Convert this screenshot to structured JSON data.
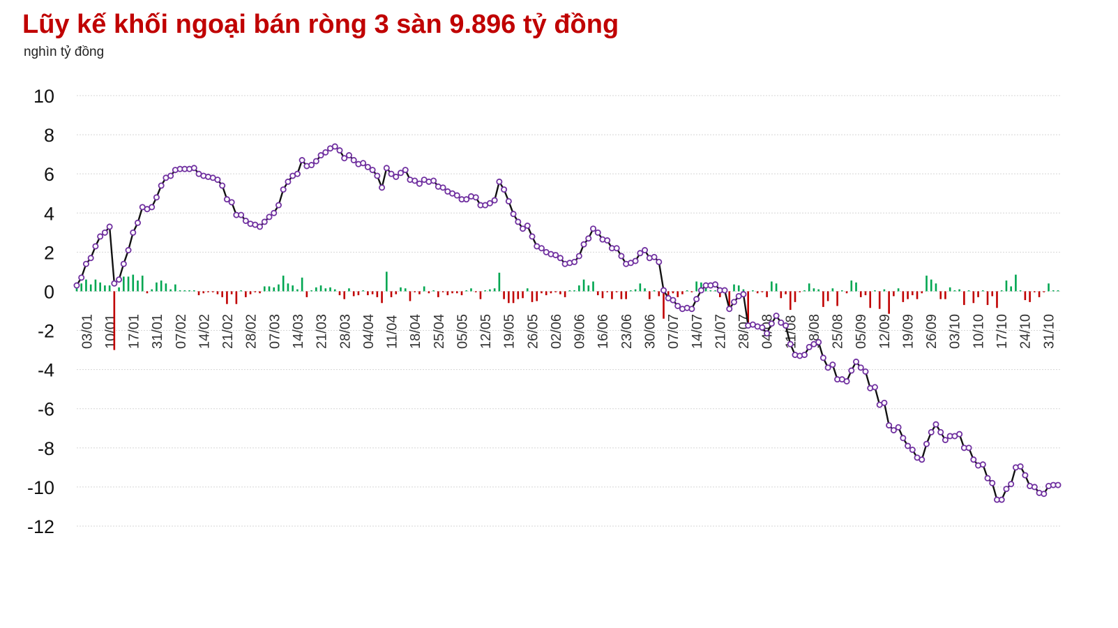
{
  "title": "Lũy kế khối ngoại bán ròng 3 sàn 9.896 tỷ đồng",
  "unit_label": "nghìn tỷ đồng",
  "chart_data": {
    "type": "line",
    "title": "Lũy kế khối ngoại bán ròng 3 sàn 9.896 tỷ đồng",
    "ylabel": "nghìn tỷ đồng",
    "xlabel": "",
    "ylim": [
      -12,
      10
    ],
    "yticks": [
      10,
      8,
      6,
      4,
      2,
      0,
      -2,
      -4,
      -6,
      -8,
      -10,
      -12
    ],
    "xtick_labels": [
      "03/01",
      "10/01",
      "17/01",
      "31/01",
      "07/02",
      "14/02",
      "21/02",
      "28/02",
      "07/03",
      "14/03",
      "21/03",
      "28/03",
      "04/04",
      "11/04",
      "18/04",
      "25/04",
      "05/05",
      "12/05",
      "19/05",
      "26/05",
      "02/06",
      "09/06",
      "16/06",
      "23/06",
      "30/06",
      "07/07",
      "14/07",
      "21/07",
      "28/07",
      "04/08",
      "11/08",
      "18/08",
      "25/08",
      "05/09",
      "12/09",
      "19/09",
      "26/09",
      "03/10",
      "10/10",
      "17/10",
      "24/10",
      "31/10"
    ],
    "grid": true,
    "colors": {
      "line": "#111111",
      "marker_stroke": "#7030a0",
      "marker_fill": "#ffffff",
      "positive_bar": "#00a651",
      "negative_bar": "#c00000"
    },
    "series": [
      {
        "type": "line",
        "values": [
          0.3,
          0.7,
          1.4,
          1.7,
          2.3,
          2.8,
          3.0,
          3.3,
          0.4,
          0.6,
          1.4,
          2.1,
          3.0,
          3.5,
          4.3,
          4.2,
          4.3,
          4.8,
          5.4,
          5.8,
          5.9,
          6.2,
          6.25,
          6.25,
          6.25,
          6.3,
          6.0,
          5.9,
          5.85,
          5.8,
          5.7,
          5.4,
          4.7,
          4.55,
          3.9,
          3.9,
          3.6,
          3.45,
          3.4,
          3.3,
          3.55,
          3.8,
          4.0,
          4.4,
          5.2,
          5.6,
          5.9,
          6.0,
          6.7,
          6.4,
          6.45,
          6.65,
          6.95,
          7.1,
          7.3,
          7.4,
          7.2,
          6.8,
          6.95,
          6.7,
          6.5,
          6.55,
          6.35,
          6.2,
          5.9,
          5.3,
          6.3,
          6.0,
          5.85,
          6.05,
          6.2,
          5.7,
          5.65,
          5.5,
          5.7,
          5.6,
          5.65,
          5.35,
          5.3,
          5.1,
          5.0,
          4.9,
          4.7,
          4.7,
          4.85,
          4.8,
          4.4,
          4.4,
          4.5,
          4.65,
          5.6,
          5.2,
          4.6,
          3.95,
          3.55,
          3.2,
          3.35,
          2.8,
          2.3,
          2.2,
          2.0,
          1.9,
          1.85,
          1.7,
          1.4,
          1.45,
          1.5,
          1.8,
          2.4,
          2.7,
          3.2,
          3.0,
          2.65,
          2.6,
          2.2,
          2.2,
          1.8,
          1.4,
          1.45,
          1.55,
          1.95,
          2.1,
          1.7,
          1.75,
          1.5,
          0.05,
          -0.35,
          -0.45,
          -0.75,
          -0.9,
          -0.85,
          -0.9,
          -0.4,
          0.05,
          0.3,
          0.3,
          0.35,
          0.05,
          0.05,
          -0.9,
          -0.55,
          -0.25,
          -0.15,
          -1.75,
          -1.7,
          -1.8,
          -1.85,
          -2.15,
          -1.65,
          -1.25,
          -1.6,
          -1.75,
          -2.7,
          -3.25,
          -3.3,
          -3.25,
          -2.85,
          -2.7,
          -2.6,
          -3.4,
          -3.9,
          -3.75,
          -4.5,
          -4.5,
          -4.6,
          -4.05,
          -3.6,
          -3.9,
          -4.1,
          -4.95,
          -4.9,
          -5.8,
          -5.7,
          -6.85,
          -7.1,
          -6.95,
          -7.5,
          -7.9,
          -8.1,
          -8.5,
          -8.6,
          -7.8,
          -7.2,
          -6.8,
          -7.2,
          -7.6,
          -7.4,
          -7.4,
          -7.3,
          -8.0,
          -8.0,
          -8.6,
          -8.9,
          -8.85,
          -9.55,
          -9.8,
          -10.65,
          -10.65,
          -10.1,
          -9.85,
          -9.0,
          -8.95,
          -9.4,
          -9.95,
          -10.0,
          -10.3,
          -10.35,
          -9.95,
          -9.9,
          -9.9
        ]
      },
      {
        "type": "bar",
        "values": [
          0.15,
          0.4,
          0.6,
          0.35,
          0.6,
          0.45,
          0.3,
          0.3,
          -3.0,
          0.2,
          0.75,
          0.75,
          0.85,
          0.55,
          0.8,
          -0.1,
          0.1,
          0.45,
          0.55,
          0.4,
          0.1,
          0.35,
          0.05,
          0.05,
          0.05,
          0.05,
          -0.2,
          -0.1,
          -0.05,
          -0.05,
          -0.15,
          -0.3,
          -0.65,
          -0.15,
          -0.65,
          0.05,
          -0.3,
          -0.15,
          -0.05,
          -0.1,
          0.25,
          0.25,
          0.2,
          0.35,
          0.8,
          0.4,
          0.3,
          0.1,
          0.7,
          -0.3,
          0.05,
          0.2,
          0.3,
          0.15,
          0.2,
          0.1,
          -0.2,
          -0.4,
          0.15,
          -0.25,
          -0.2,
          0.05,
          -0.2,
          -0.15,
          -0.3,
          -0.6,
          1.0,
          -0.3,
          -0.15,
          0.2,
          0.15,
          -0.5,
          -0.05,
          -0.15,
          0.25,
          -0.1,
          0.05,
          -0.3,
          -0.05,
          -0.2,
          -0.1,
          -0.1,
          -0.2,
          0.05,
          0.15,
          -0.05,
          -0.4,
          0.05,
          0.1,
          0.15,
          0.95,
          -0.4,
          -0.6,
          -0.6,
          -0.4,
          -0.35,
          0.15,
          -0.55,
          -0.5,
          -0.1,
          -0.2,
          -0.1,
          -0.05,
          -0.15,
          -0.3,
          0.05,
          0.05,
          0.3,
          0.6,
          0.3,
          0.5,
          -0.2,
          -0.35,
          -0.05,
          -0.4,
          -0.05,
          -0.4,
          -0.4,
          0.05,
          0.1,
          0.4,
          0.15,
          -0.4,
          0.05,
          -0.25,
          -1.4,
          -0.4,
          -0.1,
          -0.3,
          -0.15,
          0.05,
          -0.05,
          0.5,
          0.45,
          0.25,
          0.05,
          0.05,
          -0.3,
          -0.05,
          -0.95,
          0.35,
          0.3,
          0.1,
          -1.6,
          0.05,
          -0.1,
          -0.05,
          -0.3,
          0.5,
          0.4,
          -0.35,
          -0.15,
          -0.95,
          -0.55,
          -0.05,
          0.05,
          0.4,
          0.15,
          0.1,
          -0.8,
          -0.5,
          0.15,
          -0.75,
          0.05,
          -0.1,
          0.55,
          0.45,
          -0.3,
          -0.2,
          -0.85,
          0.05,
          -0.9,
          0.1,
          -1.15,
          -0.25,
          0.15,
          -0.55,
          -0.4,
          -0.2,
          -0.4,
          -0.1,
          0.8,
          0.6,
          0.4,
          -0.4,
          -0.4,
          0.2,
          0.05,
          0.1,
          -0.7,
          0.05,
          -0.6,
          -0.3,
          0.05,
          -0.7,
          -0.25,
          -0.85,
          0.05,
          0.55,
          0.25,
          0.85,
          0.05,
          -0.45,
          -0.55,
          -0.05,
          -0.3,
          -0.05,
          0.4,
          0.05,
          0.05
        ]
      }
    ]
  }
}
